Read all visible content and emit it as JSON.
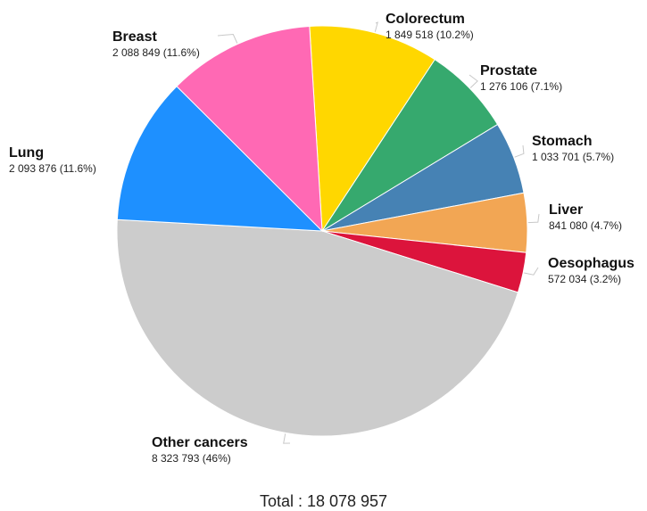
{
  "chart_data": {
    "type": "pie",
    "total_label": "Total : 18 078 957",
    "slices": [
      {
        "name": "Colorectum",
        "label": "1 849 518 (10.2%)",
        "value": 1849518,
        "percent": 10.2,
        "color": "#FFD700"
      },
      {
        "name": "Prostate",
        "label": "1 276 106 (7.1%)",
        "value": 1276106,
        "percent": 7.1,
        "color": "#36A96E"
      },
      {
        "name": "Stomach",
        "label": "1 033 701 (5.7%)",
        "value": 1033701,
        "percent": 5.7,
        "color": "#4682B4"
      },
      {
        "name": "Liver",
        "label": "841 080 (4.7%)",
        "value": 841080,
        "percent": 4.7,
        "color": "#F2A654"
      },
      {
        "name": "Oesophagus",
        "label": "572 034 (3.2%)",
        "value": 572034,
        "percent": 3.2,
        "color": "#DC143C"
      },
      {
        "name": "Other cancers",
        "label": "8 323 793 (46%)",
        "value": 8323793,
        "percent": 46.0,
        "color": "#CCCCCC"
      },
      {
        "name": "Lung",
        "label": "2 093 876 (11.6%)",
        "value": 2093876,
        "percent": 11.6,
        "color": "#1E90FF"
      },
      {
        "name": "Breast",
        "label": "2 088 849 (11.6%)",
        "value": 2088849,
        "percent": 11.6,
        "color": "#FF69B4"
      }
    ]
  }
}
